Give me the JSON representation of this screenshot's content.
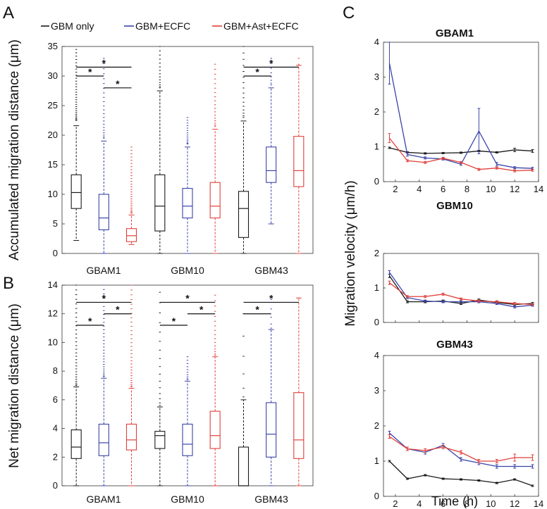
{
  "panel_letters": [
    "A",
    "B",
    "C"
  ],
  "colors": {
    "GBM only": "#1a1a1a",
    "GBM+ECFC": "#3a44a8",
    "GBM+Ast+ECFC": "#e0403a"
  },
  "legend": [
    "GBM only",
    "GBM+ECFC",
    "GBM+Ast+ECFC"
  ],
  "chart_data": [
    {
      "type": "box",
      "panel": "A",
      "ylabel": "Accumulated migration distance (μm)",
      "ylim": [
        0,
        35
      ],
      "yticks": [
        0,
        5,
        10,
        15,
        20,
        25,
        30,
        35
      ],
      "categories": [
        "GBAM1",
        "GBM10",
        "GBM43"
      ],
      "groups": [
        "GBM only",
        "GBM+ECFC",
        "GBM+Ast+ECFC"
      ],
      "boxes": [
        [
          {
            "whislo": 2.2,
            "q1": 7.6,
            "med": 10.3,
            "q3": 13.3,
            "whishi": 21.6,
            "outlier_range": [
              22.5,
              34.5
            ],
            "outlier_count": 30
          },
          {
            "whislo": 0,
            "q1": 4.0,
            "med": 6.0,
            "q3": 10.0,
            "whishi": 19.0,
            "outlier_range": [
              19.5,
              33
            ],
            "outlier_count": 22
          },
          {
            "whislo": 1.5,
            "q1": 2.0,
            "med": 3.0,
            "q3": 4.2,
            "whishi": 6.5,
            "outlier_range": [
              6.8,
              18
            ],
            "outlier_count": 28
          }
        ],
        [
          {
            "whislo": 0,
            "q1": 3.8,
            "med": 8.0,
            "q3": 13.3,
            "whishi": 27.5,
            "outlier_range": [
              28,
              35
            ],
            "outlier_count": 14
          },
          {
            "whislo": 0,
            "q1": 6.0,
            "med": 8.0,
            "q3": 11.0,
            "whishi": 18.0,
            "outlier_range": [
              18.5,
              23
            ],
            "outlier_count": 14
          },
          {
            "whislo": 0,
            "q1": 6.0,
            "med": 8.0,
            "q3": 12.0,
            "whishi": 21.0,
            "outlier_range": [
              21.5,
              32
            ],
            "outlier_count": 18
          }
        ],
        [
          {
            "whislo": 0,
            "q1": 2.7,
            "med": 7.6,
            "q3": 10.5,
            "whishi": 22.4,
            "outlier_range": [
              23,
              35
            ],
            "outlier_count": 16
          },
          {
            "whislo": 5.0,
            "q1": 12.0,
            "med": 14.0,
            "q3": 18.0,
            "whishi": 28.0,
            "outlier_range": [
              28.5,
              33
            ],
            "outlier_count": 8
          },
          {
            "whislo": 0,
            "q1": 11.3,
            "med": 14.0,
            "q3": 19.8,
            "whishi": 31.8,
            "outlier_range": [
              32,
              33
            ],
            "outlier_count": 2
          }
        ]
      ],
      "significance": [
        {
          "category": 0,
          "pair": [
            0,
            1
          ],
          "level": 30.0,
          "label": "*"
        },
        {
          "category": 0,
          "pair": [
            1,
            2
          ],
          "level": 28.0,
          "label": "*"
        },
        {
          "category": 0,
          "pair": [
            0,
            2
          ],
          "level": 31.5,
          "label": "*"
        },
        {
          "category": 2,
          "pair": [
            0,
            1
          ],
          "level": 30.0,
          "label": "*"
        },
        {
          "category": 2,
          "pair": [
            0,
            2
          ],
          "level": 31.5,
          "label": "*"
        }
      ]
    },
    {
      "type": "box",
      "panel": "B",
      "ylabel": "Net migration distance (μm)",
      "ylim": [
        0,
        14
      ],
      "yticks": [
        0,
        2,
        4,
        6,
        8,
        10,
        12,
        14
      ],
      "categories": [
        "GBAM1",
        "GBM10",
        "GBM43"
      ],
      "groups": [
        "GBM only",
        "GBM+ECFC",
        "GBM+Ast+ECFC"
      ],
      "boxes": [
        [
          {
            "whislo": 0,
            "q1": 1.9,
            "med": 2.7,
            "q3": 3.9,
            "whishi": 6.9,
            "outlier_range": [
              7.0,
              14
            ],
            "outlier_count": 30
          },
          {
            "whislo": 0,
            "q1": 2.1,
            "med": 3.0,
            "q3": 4.3,
            "whishi": 7.5,
            "outlier_range": [
              7.6,
              14
            ],
            "outlier_count": 30
          },
          {
            "whislo": 0,
            "q1": 2.5,
            "med": 3.2,
            "q3": 4.3,
            "whishi": 6.8,
            "outlier_range": [
              6.9,
              14
            ],
            "outlier_count": 30
          }
        ],
        [
          {
            "whislo": 0,
            "q1": 2.6,
            "med": 3.5,
            "q3": 3.8,
            "whishi": 5.5,
            "outlier_range": [
              5.6,
              13.5
            ],
            "outlier_count": 16
          },
          {
            "whislo": 0,
            "q1": 2.1,
            "med": 2.9,
            "q3": 4.3,
            "whishi": 7.3,
            "outlier_range": [
              7.4,
              9
            ],
            "outlier_count": 10
          },
          {
            "whislo": 0,
            "q1": 2.6,
            "med": 3.5,
            "q3": 5.2,
            "whishi": 9.0,
            "outlier_range": [
              9.1,
              13.3
            ],
            "outlier_count": 16
          }
        ],
        [
          {
            "whislo": 0,
            "q1": 0.0,
            "med": 0.0,
            "q3": 2.7,
            "whishi": 6.0,
            "outlier_range": [
              6.2,
              12
            ],
            "outlier_count": 6
          },
          {
            "whislo": 0,
            "q1": 2.0,
            "med": 3.6,
            "q3": 5.8,
            "whishi": 10.9,
            "outlier_range": [
              11.0,
              13
            ],
            "outlier_count": 5
          },
          {
            "whislo": 0,
            "q1": 1.9,
            "med": 3.2,
            "q3": 6.5,
            "whishi": 13.1,
            "outlier_range": [
              13.1,
              13.3
            ],
            "outlier_count": 1
          }
        ]
      ],
      "significance": [
        {
          "category": 0,
          "pair": [
            0,
            1
          ],
          "level": 11.2,
          "label": "*"
        },
        {
          "category": 0,
          "pair": [
            1,
            2
          ],
          "level": 12.0,
          "label": "*"
        },
        {
          "category": 0,
          "pair": [
            0,
            2
          ],
          "level": 12.8,
          "label": "*"
        },
        {
          "category": 1,
          "pair": [
            0,
            1
          ],
          "level": 11.2,
          "label": "*"
        },
        {
          "category": 1,
          "pair": [
            1,
            2
          ],
          "level": 12.0,
          "label": "*"
        },
        {
          "category": 1,
          "pair": [
            0,
            2
          ],
          "level": 12.8,
          "label": "*"
        },
        {
          "category": 2,
          "pair": [
            0,
            1
          ],
          "level": 12.0,
          "label": "*"
        },
        {
          "category": 2,
          "pair": [
            0,
            2
          ],
          "level": 12.8,
          "label": "*"
        }
      ]
    },
    {
      "type": "line",
      "panel": "C",
      "title": "GBAM1",
      "ylim": [
        0,
        4
      ],
      "yticks": [
        0,
        1,
        2,
        3,
        4
      ],
      "xlim": [
        1,
        14
      ],
      "xticks": [
        2,
        4,
        6,
        8,
        10,
        12,
        14
      ],
      "x": [
        1.5,
        3,
        4.5,
        6,
        7.5,
        9,
        10.5,
        12,
        13.5
      ],
      "series": [
        {
          "name": "GBM only",
          "values": [
            0.97,
            0.84,
            0.81,
            0.82,
            0.83,
            0.88,
            0.84,
            0.91,
            0.88
          ],
          "err": [
            0.02,
            0.02,
            0.02,
            0.02,
            0.02,
            0.02,
            0.02,
            0.05,
            0.04
          ]
        },
        {
          "name": "GBM+ECFC",
          "values": [
            3.4,
            0.78,
            0.68,
            0.65,
            0.5,
            1.45,
            0.5,
            0.4,
            0.38
          ],
          "err": [
            0.6,
            0.05,
            0.03,
            0.03,
            0.03,
            0.65,
            0.05,
            0.03,
            0.03
          ]
        },
        {
          "name": "GBM+Ast+ECFC",
          "values": [
            1.25,
            0.6,
            0.55,
            0.67,
            0.55,
            0.35,
            0.39,
            0.31,
            0.33
          ],
          "err": [
            0.13,
            0.03,
            0.03,
            0.03,
            0.03,
            0.03,
            0.03,
            0.03,
            0.03
          ]
        }
      ]
    },
    {
      "type": "line",
      "panel": "C",
      "title": "GBM10",
      "ylim": [
        0,
        2
      ],
      "yticks": [
        0,
        1,
        2
      ],
      "xlim": [
        1,
        14
      ],
      "xticks": [
        2,
        4,
        6,
        8,
        10,
        12,
        14
      ],
      "x": [
        1.5,
        3,
        4.5,
        6,
        7.5,
        9,
        10.5,
        12,
        13.5
      ],
      "series": [
        {
          "name": "GBM only",
          "values": [
            1.35,
            0.6,
            0.6,
            0.62,
            0.55,
            0.65,
            0.58,
            0.52,
            0.55
          ],
          "err": [
            0.05,
            0.03,
            0.03,
            0.03,
            0.03,
            0.03,
            0.03,
            0.03,
            0.03
          ]
        },
        {
          "name": "GBM+ECFC",
          "values": [
            1.45,
            0.72,
            0.62,
            0.6,
            0.6,
            0.6,
            0.55,
            0.45,
            0.5
          ],
          "err": [
            0.05,
            0.03,
            0.03,
            0.03,
            0.03,
            0.03,
            0.03,
            0.03,
            0.03
          ]
        },
        {
          "name": "GBM+Ast+ECFC",
          "values": [
            1.15,
            0.75,
            0.75,
            0.82,
            0.68,
            0.62,
            0.6,
            0.55,
            0.52
          ],
          "err": [
            0.05,
            0.03,
            0.03,
            0.03,
            0.03,
            0.03,
            0.03,
            0.03,
            0.03
          ]
        }
      ]
    },
    {
      "type": "line",
      "panel": "C",
      "title": "GBM43",
      "ylim": [
        0,
        4
      ],
      "yticks": [
        0,
        1,
        2,
        3,
        4
      ],
      "xlim": [
        1,
        14
      ],
      "xticks": [
        2,
        4,
        6,
        8,
        10,
        12,
        14
      ],
      "xlabel": "Time (h)",
      "x": [
        1.5,
        3,
        4.5,
        6,
        7.5,
        9,
        10.5,
        12,
        13.5
      ],
      "series": [
        {
          "name": "GBM only",
          "values": [
            1.0,
            0.5,
            0.6,
            0.5,
            0.48,
            0.45,
            0.38,
            0.48,
            0.3
          ],
          "err": [
            0.02,
            0.02,
            0.02,
            0.02,
            0.02,
            0.02,
            0.02,
            0.02,
            0.02
          ]
        },
        {
          "name": "GBM+ECFC",
          "values": [
            1.8,
            1.35,
            1.25,
            1.45,
            1.05,
            0.95,
            0.85,
            0.85,
            0.85
          ],
          "err": [
            0.05,
            0.05,
            0.05,
            0.05,
            0.05,
            0.05,
            0.05,
            0.05,
            0.05
          ]
        },
        {
          "name": "GBM+Ast+ECFC",
          "values": [
            1.7,
            1.35,
            1.3,
            1.4,
            1.25,
            1.0,
            1.0,
            1.1,
            1.1
          ],
          "err": [
            0.05,
            0.05,
            0.05,
            0.05,
            0.05,
            0.05,
            0.05,
            0.1,
            0.08
          ]
        }
      ]
    }
  ],
  "c_ylabel": "Migration velocity (μm/h)"
}
